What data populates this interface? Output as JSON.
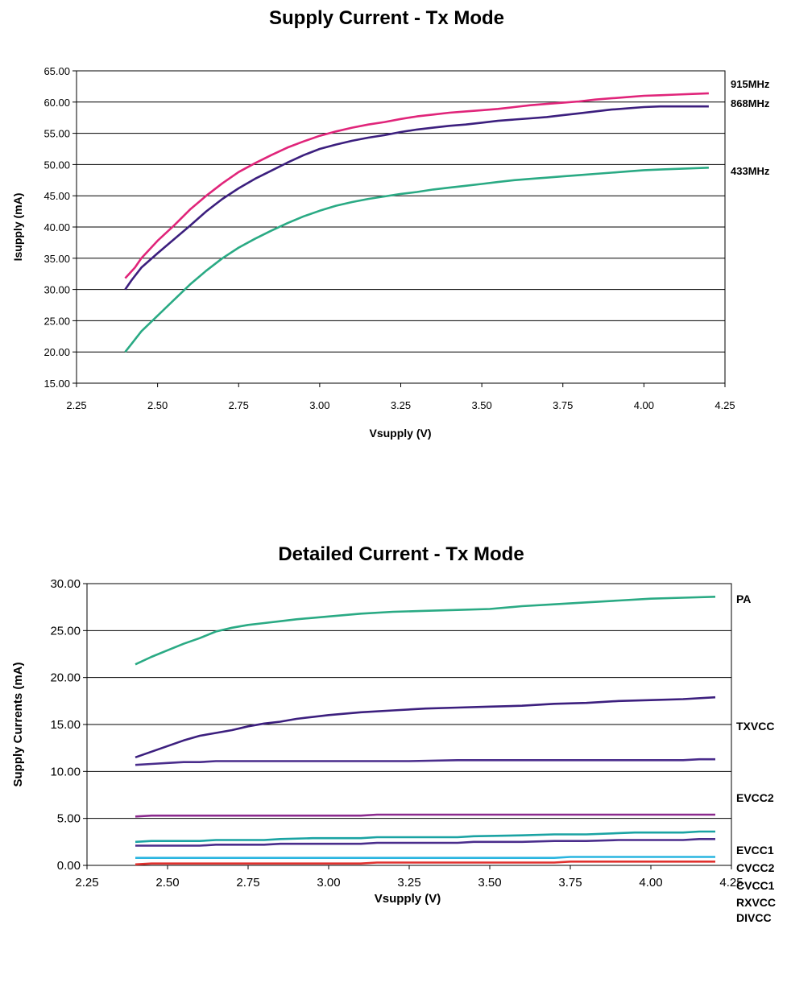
{
  "chart_data": [
    {
      "type": "line",
      "title": "Supply Current - Tx Mode",
      "xlabel": "Vsupply (V)",
      "ylabel": "Isupply (mA)",
      "xlim": [
        2.25,
        4.25
      ],
      "ylim": [
        15,
        65
      ],
      "xticks": [
        "2.25",
        "2.50",
        "2.75",
        "3.00",
        "3.25",
        "3.50",
        "3.75",
        "4.00",
        "4.25"
      ],
      "yticks": [
        "15.00",
        "20.00",
        "25.00",
        "30.00",
        "35.00",
        "40.00",
        "45.00",
        "50.00",
        "55.00",
        "60.00",
        "65.00"
      ],
      "grid": true,
      "series": [
        {
          "name": "915MHz",
          "color": "#e0257a",
          "points": [
            [
              2.4,
              31.8
            ],
            [
              2.43,
              33.5
            ],
            [
              2.45,
              35.0
            ],
            [
              2.5,
              37.8
            ],
            [
              2.55,
              40.2
            ],
            [
              2.6,
              42.8
            ],
            [
              2.65,
              45.0
            ],
            [
              2.7,
              47.0
            ],
            [
              2.75,
              48.8
            ],
            [
              2.8,
              50.2
            ],
            [
              2.85,
              51.5
            ],
            [
              2.9,
              52.7
            ],
            [
              2.95,
              53.7
            ],
            [
              3.0,
              54.6
            ],
            [
              3.05,
              55.3
            ],
            [
              3.1,
              55.9
            ],
            [
              3.15,
              56.4
            ],
            [
              3.2,
              56.8
            ],
            [
              3.25,
              57.3
            ],
            [
              3.3,
              57.7
            ],
            [
              3.35,
              58.0
            ],
            [
              3.4,
              58.3
            ],
            [
              3.45,
              58.5
            ],
            [
              3.5,
              58.7
            ],
            [
              3.55,
              58.9
            ],
            [
              3.6,
              59.2
            ],
            [
              3.65,
              59.5
            ],
            [
              3.7,
              59.7
            ],
            [
              3.75,
              59.9
            ],
            [
              3.8,
              60.1
            ],
            [
              3.85,
              60.4
            ],
            [
              3.9,
              60.6
            ],
            [
              3.95,
              60.8
            ],
            [
              4.0,
              61.0
            ],
            [
              4.05,
              61.1
            ],
            [
              4.1,
              61.2
            ],
            [
              4.15,
              61.3
            ],
            [
              4.2,
              61.4
            ]
          ]
        },
        {
          "name": "868MHz",
          "color": "#3c1f7e",
          "points": [
            [
              2.4,
              30.0
            ],
            [
              2.42,
              31.5
            ],
            [
              2.45,
              33.5
            ],
            [
              2.5,
              35.8
            ],
            [
              2.55,
              38.0
            ],
            [
              2.6,
              40.2
            ],
            [
              2.65,
              42.5
            ],
            [
              2.7,
              44.5
            ],
            [
              2.75,
              46.2
            ],
            [
              2.8,
              47.7
            ],
            [
              2.85,
              49.0
            ],
            [
              2.9,
              50.3
            ],
            [
              2.95,
              51.5
            ],
            [
              3.0,
              52.5
            ],
            [
              3.05,
              53.2
            ],
            [
              3.1,
              53.8
            ],
            [
              3.15,
              54.3
            ],
            [
              3.2,
              54.7
            ],
            [
              3.25,
              55.2
            ],
            [
              3.3,
              55.6
            ],
            [
              3.35,
              55.9
            ],
            [
              3.4,
              56.2
            ],
            [
              3.45,
              56.4
            ],
            [
              3.5,
              56.7
            ],
            [
              3.55,
              57.0
            ],
            [
              3.6,
              57.2
            ],
            [
              3.65,
              57.4
            ],
            [
              3.7,
              57.6
            ],
            [
              3.75,
              57.9
            ],
            [
              3.8,
              58.2
            ],
            [
              3.85,
              58.5
            ],
            [
              3.9,
              58.8
            ],
            [
              3.95,
              59.0
            ],
            [
              4.0,
              59.2
            ],
            [
              4.05,
              59.3
            ],
            [
              4.1,
              59.3
            ],
            [
              4.15,
              59.3
            ],
            [
              4.2,
              59.3
            ]
          ]
        },
        {
          "name": "433MHz",
          "color": "#2aaa84",
          "points": [
            [
              2.4,
              20.0
            ],
            [
              2.42,
              21.3
            ],
            [
              2.45,
              23.3
            ],
            [
              2.5,
              25.8
            ],
            [
              2.55,
              28.3
            ],
            [
              2.6,
              30.8
            ],
            [
              2.65,
              33.0
            ],
            [
              2.7,
              35.0
            ],
            [
              2.75,
              36.7
            ],
            [
              2.8,
              38.1
            ],
            [
              2.85,
              39.4
            ],
            [
              2.9,
              40.6
            ],
            [
              2.95,
              41.7
            ],
            [
              3.0,
              42.6
            ],
            [
              3.05,
              43.4
            ],
            [
              3.1,
              44.0
            ],
            [
              3.15,
              44.5
            ],
            [
              3.2,
              44.9
            ],
            [
              3.25,
              45.3
            ],
            [
              3.3,
              45.6
            ],
            [
              3.35,
              46.0
            ],
            [
              3.4,
              46.3
            ],
            [
              3.45,
              46.6
            ],
            [
              3.5,
              46.9
            ],
            [
              3.55,
              47.2
            ],
            [
              3.6,
              47.5
            ],
            [
              3.65,
              47.7
            ],
            [
              3.7,
              47.9
            ],
            [
              3.75,
              48.1
            ],
            [
              3.8,
              48.3
            ],
            [
              3.85,
              48.5
            ],
            [
              3.9,
              48.7
            ],
            [
              3.95,
              48.9
            ],
            [
              4.0,
              49.1
            ],
            [
              4.05,
              49.2
            ],
            [
              4.1,
              49.3
            ],
            [
              4.15,
              49.4
            ],
            [
              4.2,
              49.5
            ]
          ]
        }
      ]
    },
    {
      "type": "line",
      "title": "Detailed Current - Tx Mode",
      "xlabel": "Vsupply (V)",
      "ylabel": "Supply Currents (mA)",
      "xlim": [
        2.25,
        4.25
      ],
      "ylim": [
        0,
        30
      ],
      "xticks": [
        "2.25",
        "2.50",
        "2.75",
        "3.00",
        "3.25",
        "3.50",
        "3.75",
        "4.00",
        "4.25"
      ],
      "yticks": [
        "0.00",
        "5.00",
        "10.00",
        "15.00",
        "20.00",
        "25.00",
        "30.00"
      ],
      "grid": true,
      "series": [
        {
          "name": "PA",
          "color": "#2aaa84",
          "points": [
            [
              2.4,
              21.4
            ],
            [
              2.45,
              22.2
            ],
            [
              2.5,
              22.9
            ],
            [
              2.55,
              23.6
            ],
            [
              2.6,
              24.2
            ],
            [
              2.65,
              24.9
            ],
            [
              2.7,
              25.3
            ],
            [
              2.75,
              25.6
            ],
            [
              2.8,
              25.8
            ],
            [
              2.85,
              26.0
            ],
            [
              2.9,
              26.2
            ],
            [
              3.0,
              26.5
            ],
            [
              3.1,
              26.8
            ],
            [
              3.2,
              27.0
            ],
            [
              3.3,
              27.1
            ],
            [
              3.4,
              27.2
            ],
            [
              3.5,
              27.3
            ],
            [
              3.6,
              27.6
            ],
            [
              3.7,
              27.8
            ],
            [
              3.8,
              28.0
            ],
            [
              3.9,
              28.2
            ],
            [
              4.0,
              28.4
            ],
            [
              4.1,
              28.5
            ],
            [
              4.2,
              28.6
            ]
          ]
        },
        {
          "name": "TXVCC",
          "color": "#3c1f7e",
          "points": [
            [
              2.4,
              11.5
            ],
            [
              2.45,
              12.1
            ],
            [
              2.5,
              12.7
            ],
            [
              2.55,
              13.3
            ],
            [
              2.6,
              13.8
            ],
            [
              2.65,
              14.1
            ],
            [
              2.7,
              14.4
            ],
            [
              2.75,
              14.8
            ],
            [
              2.8,
              15.1
            ],
            [
              2.85,
              15.3
            ],
            [
              2.9,
              15.6
            ],
            [
              3.0,
              16.0
            ],
            [
              3.1,
              16.3
            ],
            [
              3.2,
              16.5
            ],
            [
              3.3,
              16.7
            ],
            [
              3.4,
              16.8
            ],
            [
              3.5,
              16.9
            ],
            [
              3.6,
              17.0
            ],
            [
              3.7,
              17.2
            ],
            [
              3.8,
              17.3
            ],
            [
              3.9,
              17.5
            ],
            [
              4.0,
              17.6
            ],
            [
              4.1,
              17.7
            ],
            [
              4.2,
              17.9
            ]
          ]
        },
        {
          "name": "EVCC2",
          "color": "#4a2d8c",
          "points": [
            [
              2.4,
              10.7
            ],
            [
              2.45,
              10.8
            ],
            [
              2.5,
              10.9
            ],
            [
              2.55,
              11.0
            ],
            [
              2.6,
              11.0
            ],
            [
              2.65,
              11.1
            ],
            [
              2.75,
              11.1
            ],
            [
              3.0,
              11.1
            ],
            [
              3.25,
              11.1
            ],
            [
              3.4,
              11.2
            ],
            [
              3.6,
              11.2
            ],
            [
              3.8,
              11.2
            ],
            [
              4.0,
              11.2
            ],
            [
              4.1,
              11.2
            ],
            [
              4.15,
              11.3
            ],
            [
              4.2,
              11.3
            ]
          ]
        },
        {
          "name": "EVCC1",
          "color": "#8b2a8e",
          "points": [
            [
              2.4,
              5.2
            ],
            [
              2.45,
              5.3
            ],
            [
              2.6,
              5.3
            ],
            [
              2.8,
              5.3
            ],
            [
              3.0,
              5.3
            ],
            [
              3.1,
              5.3
            ],
            [
              3.15,
              5.4
            ],
            [
              3.4,
              5.4
            ],
            [
              3.7,
              5.4
            ],
            [
              4.0,
              5.4
            ],
            [
              4.2,
              5.4
            ]
          ]
        },
        {
          "name": "CVCC2",
          "color": "#1aa3a3",
          "points": [
            [
              2.4,
              2.5
            ],
            [
              2.45,
              2.6
            ],
            [
              2.6,
              2.6
            ],
            [
              2.65,
              2.7
            ],
            [
              2.8,
              2.7
            ],
            [
              2.85,
              2.8
            ],
            [
              2.95,
              2.9
            ],
            [
              3.1,
              2.9
            ],
            [
              3.15,
              3.0
            ],
            [
              3.4,
              3.0
            ],
            [
              3.45,
              3.1
            ],
            [
              3.6,
              3.2
            ],
            [
              3.7,
              3.3
            ],
            [
              3.8,
              3.3
            ],
            [
              3.95,
              3.5
            ],
            [
              4.1,
              3.5
            ],
            [
              4.15,
              3.6
            ],
            [
              4.2,
              3.6
            ]
          ]
        },
        {
          "name": "CVCC1",
          "color": "#4a2d8c",
          "points": [
            [
              2.4,
              2.1
            ],
            [
              2.6,
              2.1
            ],
            [
              2.65,
              2.2
            ],
            [
              2.8,
              2.2
            ],
            [
              2.85,
              2.3
            ],
            [
              3.1,
              2.3
            ],
            [
              3.15,
              2.4
            ],
            [
              3.4,
              2.4
            ],
            [
              3.45,
              2.5
            ],
            [
              3.6,
              2.5
            ],
            [
              3.7,
              2.6
            ],
            [
              3.8,
              2.6
            ],
            [
              3.9,
              2.7
            ],
            [
              4.1,
              2.7
            ],
            [
              4.15,
              2.8
            ],
            [
              4.2,
              2.8
            ]
          ]
        },
        {
          "name": "RXVCC",
          "color": "#29b5e0",
          "points": [
            [
              2.4,
              0.8
            ],
            [
              3.0,
              0.8
            ],
            [
              3.5,
              0.8
            ],
            [
              3.7,
              0.8
            ],
            [
              3.75,
              0.9
            ],
            [
              4.2,
              0.9
            ]
          ]
        },
        {
          "name": "DIVCC",
          "color": "#e0312e",
          "points": [
            [
              2.4,
              0.1
            ],
            [
              2.45,
              0.2
            ],
            [
              3.1,
              0.2
            ],
            [
              3.15,
              0.3
            ],
            [
              3.7,
              0.3
            ],
            [
              3.75,
              0.4
            ],
            [
              4.2,
              0.4
            ]
          ]
        }
      ]
    }
  ]
}
